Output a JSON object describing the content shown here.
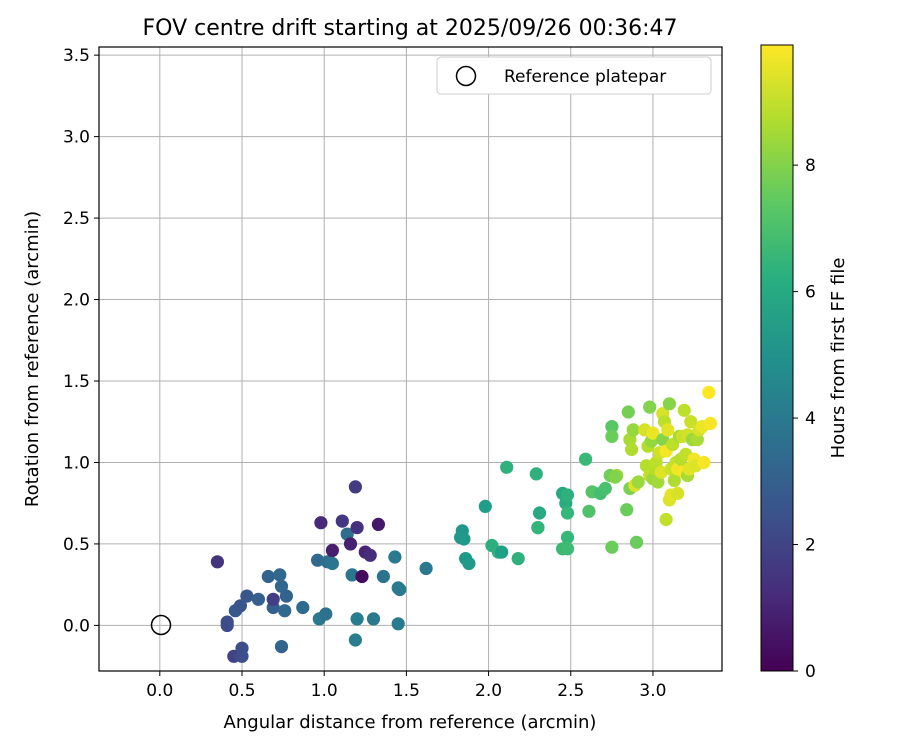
{
  "chart_data": {
    "type": "scatter",
    "title": "FOV centre drift starting at 2025/09/26 00:36:47",
    "xlabel": "Angular distance from reference (arcmin)",
    "ylabel": "Rotation from reference (arcmin)",
    "xlim": [
      -0.37,
      3.42
    ],
    "ylim": [
      -0.28,
      3.55
    ],
    "xticks": [
      "0.0",
      "0.5",
      "1.0",
      "1.5",
      "2.0",
      "2.5",
      "3.0"
    ],
    "yticks": [
      "0.0",
      "0.5",
      "1.0",
      "1.5",
      "2.0",
      "2.5",
      "3.0",
      "3.5"
    ],
    "grid": true,
    "legend": {
      "location": "upper right",
      "label": "Reference platepar"
    },
    "reference_point": {
      "x": 0.0,
      "y": 0.0,
      "marker": "open-circle"
    },
    "colorbar": {
      "label": "Hours from first FF file",
      "colormap": "viridis",
      "min": 0,
      "max": 9.9,
      "ticks": [
        "0",
        "2",
        "4",
        "6",
        "8"
      ]
    },
    "points": [
      [
        0.35,
        0.39,
        1.5
      ],
      [
        0.41,
        0.02,
        2.3
      ],
      [
        0.41,
        0.0,
        2.3
      ],
      [
        0.45,
        -0.19,
        2.0
      ],
      [
        0.46,
        0.09,
        2.8
      ],
      [
        0.49,
        0.12,
        2.6
      ],
      [
        0.5,
        -0.14,
        2.4
      ],
      [
        0.5,
        -0.19,
        2.4
      ],
      [
        0.53,
        0.18,
        2.7
      ],
      [
        0.6,
        0.16,
        3.0
      ],
      [
        0.66,
        0.3,
        3.1
      ],
      [
        0.69,
        0.11,
        3.0
      ],
      [
        0.69,
        0.16,
        1.8
      ],
      [
        0.73,
        0.31,
        3.3
      ],
      [
        0.74,
        0.24,
        3.3
      ],
      [
        0.74,
        -0.13,
        3.2
      ],
      [
        0.76,
        0.09,
        3.3
      ],
      [
        0.77,
        0.18,
        3.1
      ],
      [
        0.87,
        0.11,
        3.4
      ],
      [
        0.96,
        0.4,
        3.4
      ],
      [
        0.97,
        0.04,
        4.0
      ],
      [
        0.98,
        0.63,
        1.2
      ],
      [
        1.01,
        0.07,
        3.7
      ],
      [
        1.02,
        0.39,
        3.6
      ],
      [
        1.05,
        0.46,
        0.8
      ],
      [
        1.05,
        0.38,
        3.9
      ],
      [
        1.11,
        0.64,
        1.6
      ],
      [
        1.14,
        0.56,
        3.5
      ],
      [
        1.16,
        0.5,
        0.9
      ],
      [
        1.17,
        0.31,
        3.9
      ],
      [
        1.19,
        0.85,
        1.7
      ],
      [
        1.2,
        0.6,
        1.4
      ],
      [
        1.19,
        -0.09,
        4.2
      ],
      [
        1.2,
        0.04,
        4.2
      ],
      [
        1.23,
        0.3,
        0.3
      ],
      [
        1.25,
        0.45,
        1.0
      ],
      [
        1.28,
        0.43,
        1.3
      ],
      [
        1.3,
        0.04,
        4.0
      ],
      [
        1.33,
        0.62,
        0.6
      ],
      [
        1.36,
        0.3,
        3.8
      ],
      [
        1.43,
        0.42,
        4.0
      ],
      [
        1.45,
        0.23,
        4.2
      ],
      [
        1.46,
        0.22,
        4.0
      ],
      [
        1.45,
        0.01,
        4.1
      ],
      [
        1.62,
        0.35,
        4.0
      ],
      [
        1.83,
        0.54,
        5.3
      ],
      [
        1.84,
        0.58,
        5.2
      ],
      [
        1.85,
        0.53,
        5.3
      ],
      [
        1.86,
        0.41,
        5.4
      ],
      [
        1.88,
        0.38,
        5.4
      ],
      [
        1.98,
        0.73,
        5.5
      ],
      [
        2.02,
        0.49,
        6.2
      ],
      [
        2.06,
        0.45,
        6.3
      ],
      [
        2.08,
        0.45,
        5.6
      ],
      [
        2.11,
        0.97,
        6.3
      ],
      [
        2.18,
        0.41,
        6.3
      ],
      [
        2.29,
        0.93,
        6.3
      ],
      [
        2.3,
        0.6,
        6.4
      ],
      [
        2.31,
        0.69,
        6.0
      ],
      [
        2.3,
        0.6,
        6.5
      ],
      [
        2.45,
        0.81,
        6.0
      ],
      [
        2.45,
        0.47,
        6.7
      ],
      [
        2.47,
        0.75,
        6.1
      ],
      [
        2.48,
        0.8,
        6.3
      ],
      [
        2.48,
        0.69,
        6.6
      ],
      [
        2.48,
        0.54,
        6.6
      ],
      [
        2.48,
        0.47,
        6.8
      ],
      [
        2.59,
        1.02,
        6.7
      ],
      [
        2.61,
        0.7,
        7.1
      ],
      [
        2.63,
        0.82,
        7.2
      ],
      [
        2.68,
        0.81,
        6.9
      ],
      [
        2.71,
        0.84,
        7.0
      ],
      [
        2.74,
        0.92,
        7.7
      ],
      [
        2.75,
        1.22,
        7.3
      ],
      [
        2.75,
        1.16,
        7.6
      ],
      [
        2.75,
        0.48,
        7.6
      ],
      [
        2.78,
        0.92,
        8.4
      ],
      [
        2.77,
        0.91,
        8.0
      ],
      [
        2.84,
        0.71,
        7.6
      ],
      [
        2.85,
        1.31,
        7.8
      ],
      [
        2.86,
        1.14,
        8.6
      ],
      [
        2.86,
        0.84,
        7.9
      ],
      [
        2.88,
        1.2,
        8.3
      ],
      [
        2.87,
        1.08,
        8.7
      ],
      [
        2.89,
        0.86,
        9.4
      ],
      [
        2.9,
        0.51,
        7.6
      ],
      [
        2.91,
        0.88,
        8.4
      ],
      [
        2.95,
        1.2,
        9.3
      ],
      [
        2.96,
        0.98,
        8.8
      ],
      [
        2.97,
        1.1,
        8.8
      ],
      [
        2.98,
        1.34,
        8.0
      ],
      [
        2.98,
        0.92,
        9.0
      ],
      [
        2.99,
        1.13,
        8.3
      ],
      [
        3.0,
        0.9,
        8.4
      ],
      [
        3.0,
        1.18,
        9.6
      ],
      [
        3.01,
        0.96,
        8.8
      ],
      [
        3.02,
        1.0,
        8.9
      ],
      [
        3.03,
        0.88,
        8.5
      ],
      [
        3.04,
        1.06,
        9.2
      ],
      [
        3.05,
        0.94,
        9.4
      ],
      [
        3.06,
        1.3,
        9.3
      ],
      [
        3.06,
        1.14,
        8.1
      ],
      [
        3.07,
        1.25,
        8.9
      ],
      [
        3.08,
        0.65,
        9.0
      ],
      [
        3.08,
        1.07,
        9.8
      ],
      [
        3.09,
        1.2,
        9.5
      ],
      [
        3.1,
        1.36,
        8.1
      ],
      [
        3.1,
        0.77,
        9.4
      ],
      [
        3.11,
        0.96,
        9.1
      ],
      [
        3.11,
        0.8,
        9.5
      ],
      [
        3.12,
        1.11,
        8.9
      ],
      [
        3.13,
        0.89,
        8.7
      ],
      [
        3.14,
        1.0,
        9.0
      ],
      [
        3.15,
        0.81,
        9.3
      ],
      [
        3.15,
        0.96,
        9.7
      ],
      [
        3.16,
        1.16,
        8.6
      ],
      [
        3.17,
        1.02,
        8.8
      ],
      [
        3.18,
        1.16,
        9.1
      ],
      [
        3.19,
        1.32,
        8.9
      ],
      [
        3.19,
        0.94,
        9.8
      ],
      [
        3.2,
        1.05,
        9.0
      ],
      [
        3.21,
        0.92,
        8.6
      ],
      [
        3.21,
        1.17,
        9.2
      ],
      [
        3.22,
        0.96,
        9.5
      ],
      [
        3.23,
        1.25,
        9.1
      ],
      [
        3.24,
        1.14,
        8.4
      ],
      [
        3.25,
        1.02,
        9.7
      ],
      [
        3.26,
        0.98,
        9.4
      ],
      [
        3.27,
        1.14,
        8.6
      ],
      [
        3.28,
        1.2,
        9.3
      ],
      [
        3.3,
        1.22,
        9.6
      ],
      [
        3.31,
        1.0,
        9.8
      ],
      [
        3.34,
        1.43,
        9.9
      ],
      [
        3.35,
        1.24,
        9.8
      ]
    ]
  }
}
